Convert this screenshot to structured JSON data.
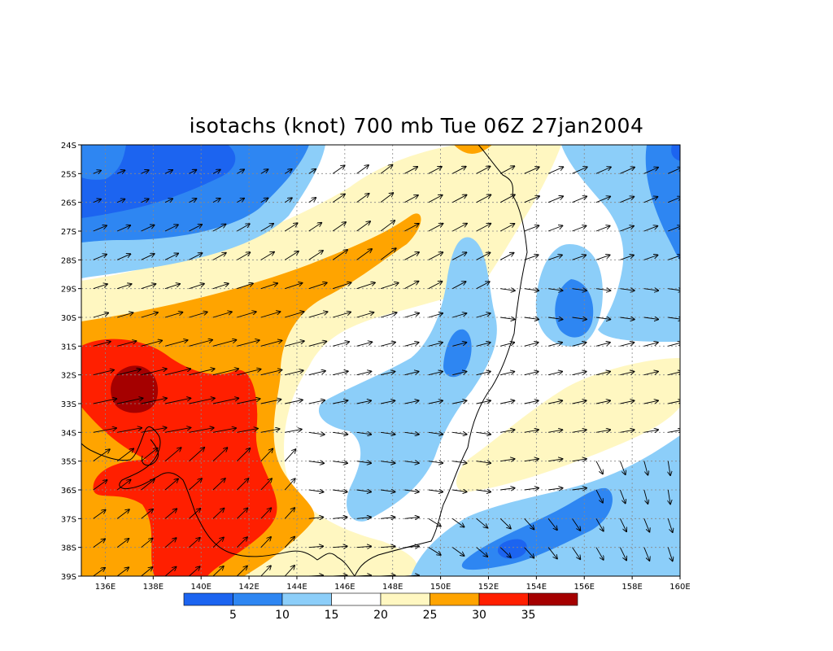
{
  "chart_data": {
    "type": "heatmap",
    "title": "isotachs (knot) 700 mb Tue 06Z 27jan2004",
    "xlim": [
      135,
      160
    ],
    "ylim": [
      -39,
      -24
    ],
    "x_ticks": [
      136,
      138,
      140,
      142,
      144,
      146,
      148,
      150,
      152,
      154,
      156,
      158,
      160
    ],
    "x_tick_labels": [
      "136E",
      "138E",
      "140E",
      "142E",
      "144E",
      "146E",
      "148E",
      "150E",
      "152E",
      "154E",
      "156E",
      "158E",
      "160E"
    ],
    "y_ticks": [
      -24,
      -25,
      -26,
      -27,
      -28,
      -29,
      -30,
      -31,
      -32,
      -33,
      -34,
      -35,
      -36,
      -37,
      -38,
      -39
    ],
    "y_tick_labels": [
      "24S",
      "25S",
      "26S",
      "27S",
      "28S",
      "29S",
      "30S",
      "31S",
      "32S",
      "33S",
      "34S",
      "35S",
      "36S",
      "37S",
      "38S",
      "39S"
    ],
    "grid": true,
    "contour_levels": [
      5,
      10,
      15,
      20,
      25,
      30,
      35
    ],
    "colorbar_labels": [
      "5",
      "10",
      "15",
      "20",
      "25",
      "30",
      "35"
    ],
    "colorbar_colors": [
      "#1c64f0",
      "#2e86f2",
      "#8ccef9",
      "#ffffff",
      "#fff7c1",
      "#ffa400",
      "#ff1f00",
      "#a50000"
    ],
    "wind_speed_features": [
      {
        "lon": 137.2,
        "lat": -32.5,
        "speed_band": "35+",
        "kind": "maximum"
      },
      {
        "lon": 140.5,
        "lat": -34.5,
        "speed_band": "30-35",
        "kind": "jet core"
      },
      {
        "lon": 139.0,
        "lat": -25.5,
        "speed_band": "5-10",
        "kind": "minimum"
      },
      {
        "lon": 155.5,
        "lat": -29.8,
        "speed_band": "5-10",
        "kind": "minimum"
      },
      {
        "lon": 151.0,
        "lat": -31.3,
        "speed_band": "5-10",
        "kind": "minimum"
      },
      {
        "lon": 153.0,
        "lat": -38.0,
        "speed_band": "5-10",
        "kind": "minimum"
      }
    ]
  }
}
